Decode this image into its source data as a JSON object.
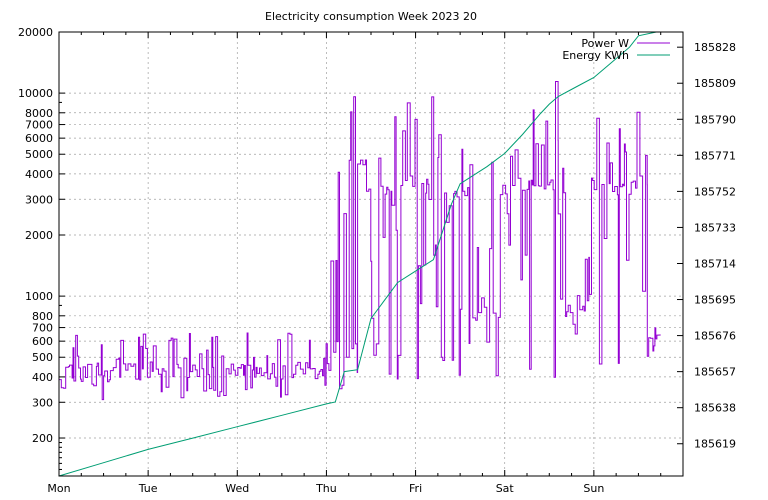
{
  "chart_data": {
    "type": "line",
    "title": "Electricity consumption Week 2023 20",
    "xlabel": "",
    "ylabel": "",
    "x_axis": {
      "range_days": [
        0,
        7
      ],
      "tick_labels": [
        "Mon",
        "Tue",
        "Wed",
        "Thu",
        "Fri",
        "Sat",
        "Sun"
      ]
    },
    "y_axis_left": {
      "scale": "log",
      "range": [
        130,
        20000
      ],
      "ticks": [
        200,
        300,
        400,
        500,
        600,
        700,
        800,
        1000,
        2000,
        3000,
        4000,
        5000,
        6000,
        7000,
        8000,
        10000,
        20000
      ],
      "tick_labels": [
        "200",
        "300",
        "400",
        "500",
        "600",
        "700",
        "800",
        "1000",
        "2000",
        "3000",
        "4000",
        "5000",
        "6000",
        "7000",
        "8000",
        "10000",
        "20000"
      ]
    },
    "y_axis_right": {
      "scale": "linear",
      "range": [
        185602,
        185836
      ],
      "ticks": [
        185619,
        185638,
        185657,
        185676,
        185695,
        185714,
        185733,
        185752,
        185771,
        185790,
        185809,
        185828
      ],
      "tick_labels": [
        "185619",
        "185638",
        "185657",
        "185676",
        "185695",
        "185714",
        "185733",
        "185752",
        "185771",
        "185790",
        "185809",
        "185828"
      ]
    },
    "grid": true,
    "legend_position": "top-right",
    "series": [
      {
        "name": "Power W",
        "axis": "left",
        "color": "#9400d3",
        "segments": [
          {
            "x": [
              0.0,
              3.05
            ],
            "base": 430,
            "low": 300,
            "high": 660
          },
          {
            "x": [
              3.05,
              3.35
            ],
            "base": 550,
            "low": 330,
            "high": 12000
          },
          {
            "x": [
              3.35,
              3.45
            ],
            "base": 5000,
            "low": 4400,
            "high": 17500
          },
          {
            "x": [
              3.45,
              4.15
            ],
            "base": 3500,
            "low": 380,
            "high": 12000
          },
          {
            "x": [
              4.15,
              4.6
            ],
            "base": 3000,
            "low": 400,
            "high": 12000
          },
          {
            "x": [
              4.6,
              4.95
            ],
            "base": 900,
            "low": 400,
            "high": 5000
          },
          {
            "x": [
              4.95,
              5.6
            ],
            "base": 3500,
            "low": 370,
            "high": 12000
          },
          {
            "x": [
              5.6,
              5.95
            ],
            "base": 900,
            "low": 500,
            "high": 5000
          },
          {
            "x": [
              5.95,
              6.6
            ],
            "base": 3500,
            "low": 330,
            "high": 9000
          },
          {
            "x": [
              6.6,
              6.75
            ],
            "base": 600,
            "low": 440,
            "high": 700
          }
        ]
      },
      {
        "name": "Energy KWh",
        "axis": "right",
        "color": "#009e73",
        "x": [
          0.0,
          0.5,
          1.0,
          1.5,
          2.0,
          2.5,
          3.0,
          3.1,
          3.2,
          3.35,
          3.5,
          3.8,
          4.0,
          4.2,
          4.4,
          4.5,
          4.6,
          4.8,
          5.0,
          5.2,
          5.4,
          5.5,
          5.6,
          5.8,
          6.0,
          6.2,
          6.4,
          6.5,
          6.7
        ],
        "y": [
          185602,
          185609,
          185616,
          185622,
          185628,
          185634,
          185640,
          185641,
          185657,
          185658,
          185685,
          185704,
          185710,
          185716,
          185745,
          185756,
          185759,
          185765,
          185772,
          185782,
          185793,
          185798,
          185802,
          185807,
          185812,
          185820,
          185828,
          185834,
          185836
        ]
      }
    ]
  }
}
